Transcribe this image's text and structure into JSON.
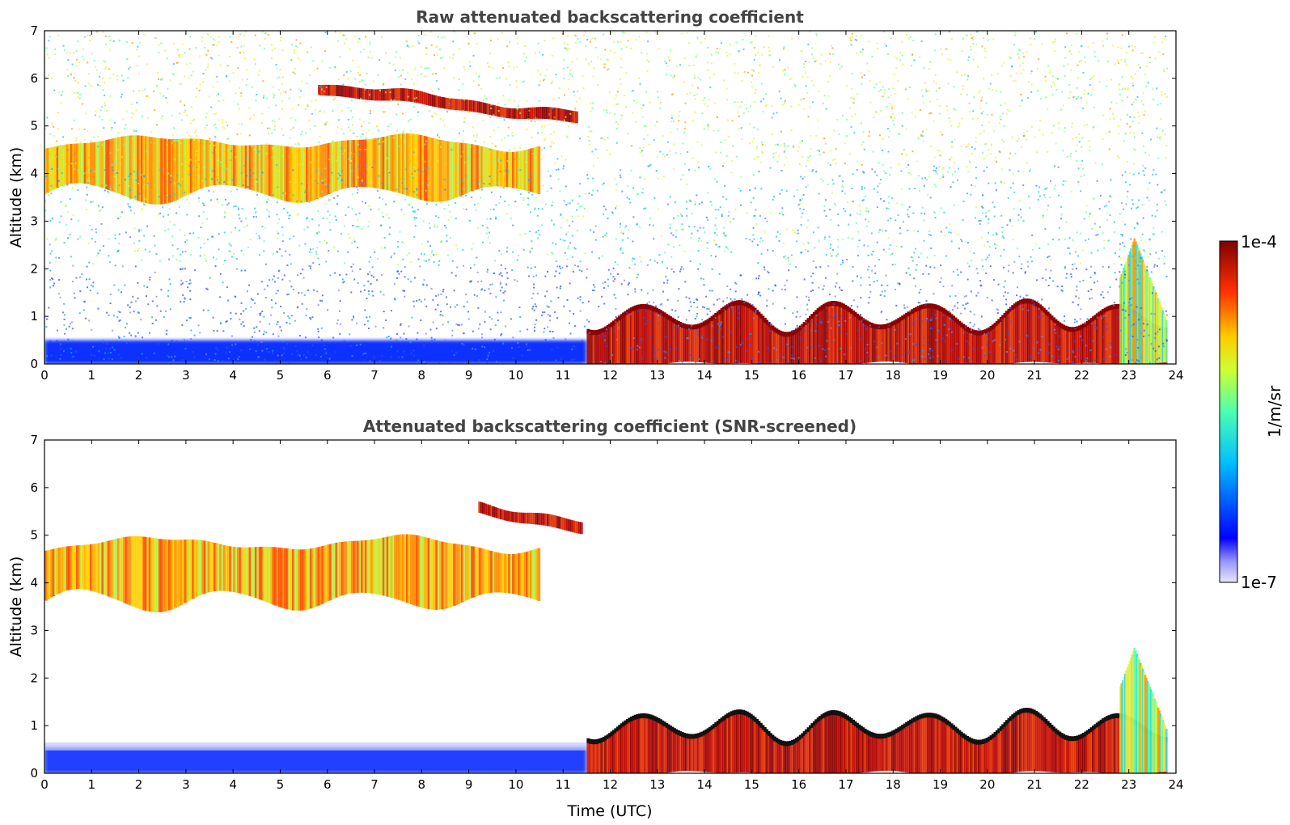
{
  "chart_data": [
    {
      "type": "heatmap",
      "title": "Raw attenuated backscattering coefficient",
      "xlabel": "",
      "ylabel": "Altitude (km)",
      "xlim": [
        0,
        24
      ],
      "ylim": [
        0,
        7
      ],
      "x_ticks": [
        "0",
        "1",
        "2",
        "3",
        "4",
        "5",
        "6",
        "7",
        "8",
        "9",
        "10",
        "11",
        "12",
        "13",
        "14",
        "15",
        "16",
        "17",
        "18",
        "19",
        "20",
        "21",
        "22",
        "23",
        "24"
      ],
      "y_ticks": [
        "0",
        "1",
        "2",
        "3",
        "4",
        "5",
        "6",
        "7"
      ],
      "features": [
        {
          "kind": "elevated_cloud_layer",
          "time_utc": [
            0,
            10.5
          ],
          "altitude_km": [
            3.1,
            5.0
          ],
          "intensity": "high"
        },
        {
          "kind": "cloud_streak",
          "time_utc": [
            5.8,
            11.3
          ],
          "altitude_km": [
            5.0,
            5.8
          ],
          "intensity": "very_high"
        },
        {
          "kind": "boundary_layer_aerosol",
          "time_utc": [
            0,
            11.5
          ],
          "altitude_km": [
            0,
            0.5
          ],
          "intensity": "low"
        },
        {
          "kind": "low_cloud",
          "time_utc": [
            11.5,
            23.8
          ],
          "altitude_km": [
            0,
            1.6
          ],
          "intensity": "very_high"
        },
        {
          "kind": "aerosol_plume",
          "time_utc": [
            22.8,
            23.8
          ],
          "altitude_km": [
            0,
            2.7
          ],
          "intensity": "medium"
        },
        {
          "kind": "background_noise",
          "time_utc": [
            0,
            23.8
          ],
          "altitude_km": [
            0,
            7
          ],
          "intensity": "medium"
        }
      ]
    },
    {
      "type": "heatmap",
      "title": "Attenuated backscattering coefficient (SNR-screened)",
      "xlabel": "Time (UTC)",
      "ylabel": "Altitude (km)",
      "xlim": [
        0,
        24
      ],
      "ylim": [
        0,
        7
      ],
      "x_ticks": [
        "0",
        "1",
        "2",
        "3",
        "4",
        "5",
        "6",
        "7",
        "8",
        "9",
        "10",
        "11",
        "12",
        "13",
        "14",
        "15",
        "16",
        "17",
        "18",
        "19",
        "20",
        "21",
        "22",
        "23",
        "24"
      ],
      "y_ticks": [
        "0",
        "1",
        "2",
        "3",
        "4",
        "5",
        "6",
        "7"
      ],
      "features": [
        {
          "kind": "elevated_cloud_layer",
          "time_utc": [
            0,
            10.5
          ],
          "altitude_km": [
            3.1,
            5.2
          ],
          "intensity": "high"
        },
        {
          "kind": "cloud_streak",
          "time_utc": [
            9.2,
            11.4
          ],
          "altitude_km": [
            5.0,
            5.6
          ],
          "intensity": "very_high"
        },
        {
          "kind": "boundary_layer_aerosol",
          "time_utc": [
            0,
            11.5
          ],
          "altitude_km": [
            0,
            0.55
          ],
          "intensity": "low"
        },
        {
          "kind": "low_cloud",
          "time_utc": [
            11.5,
            23.8
          ],
          "altitude_km": [
            0,
            1.6
          ],
          "intensity": "very_high"
        },
        {
          "kind": "aerosol_plume",
          "time_utc": [
            22.8,
            23.8
          ],
          "altitude_km": [
            0,
            2.7
          ],
          "intensity": "medium"
        }
      ]
    }
  ],
  "colorbar": {
    "max_label": "1e-4",
    "min_label": "1e-7",
    "unit_label": "1/m/sr",
    "scale": "log",
    "colormap": "jet"
  }
}
